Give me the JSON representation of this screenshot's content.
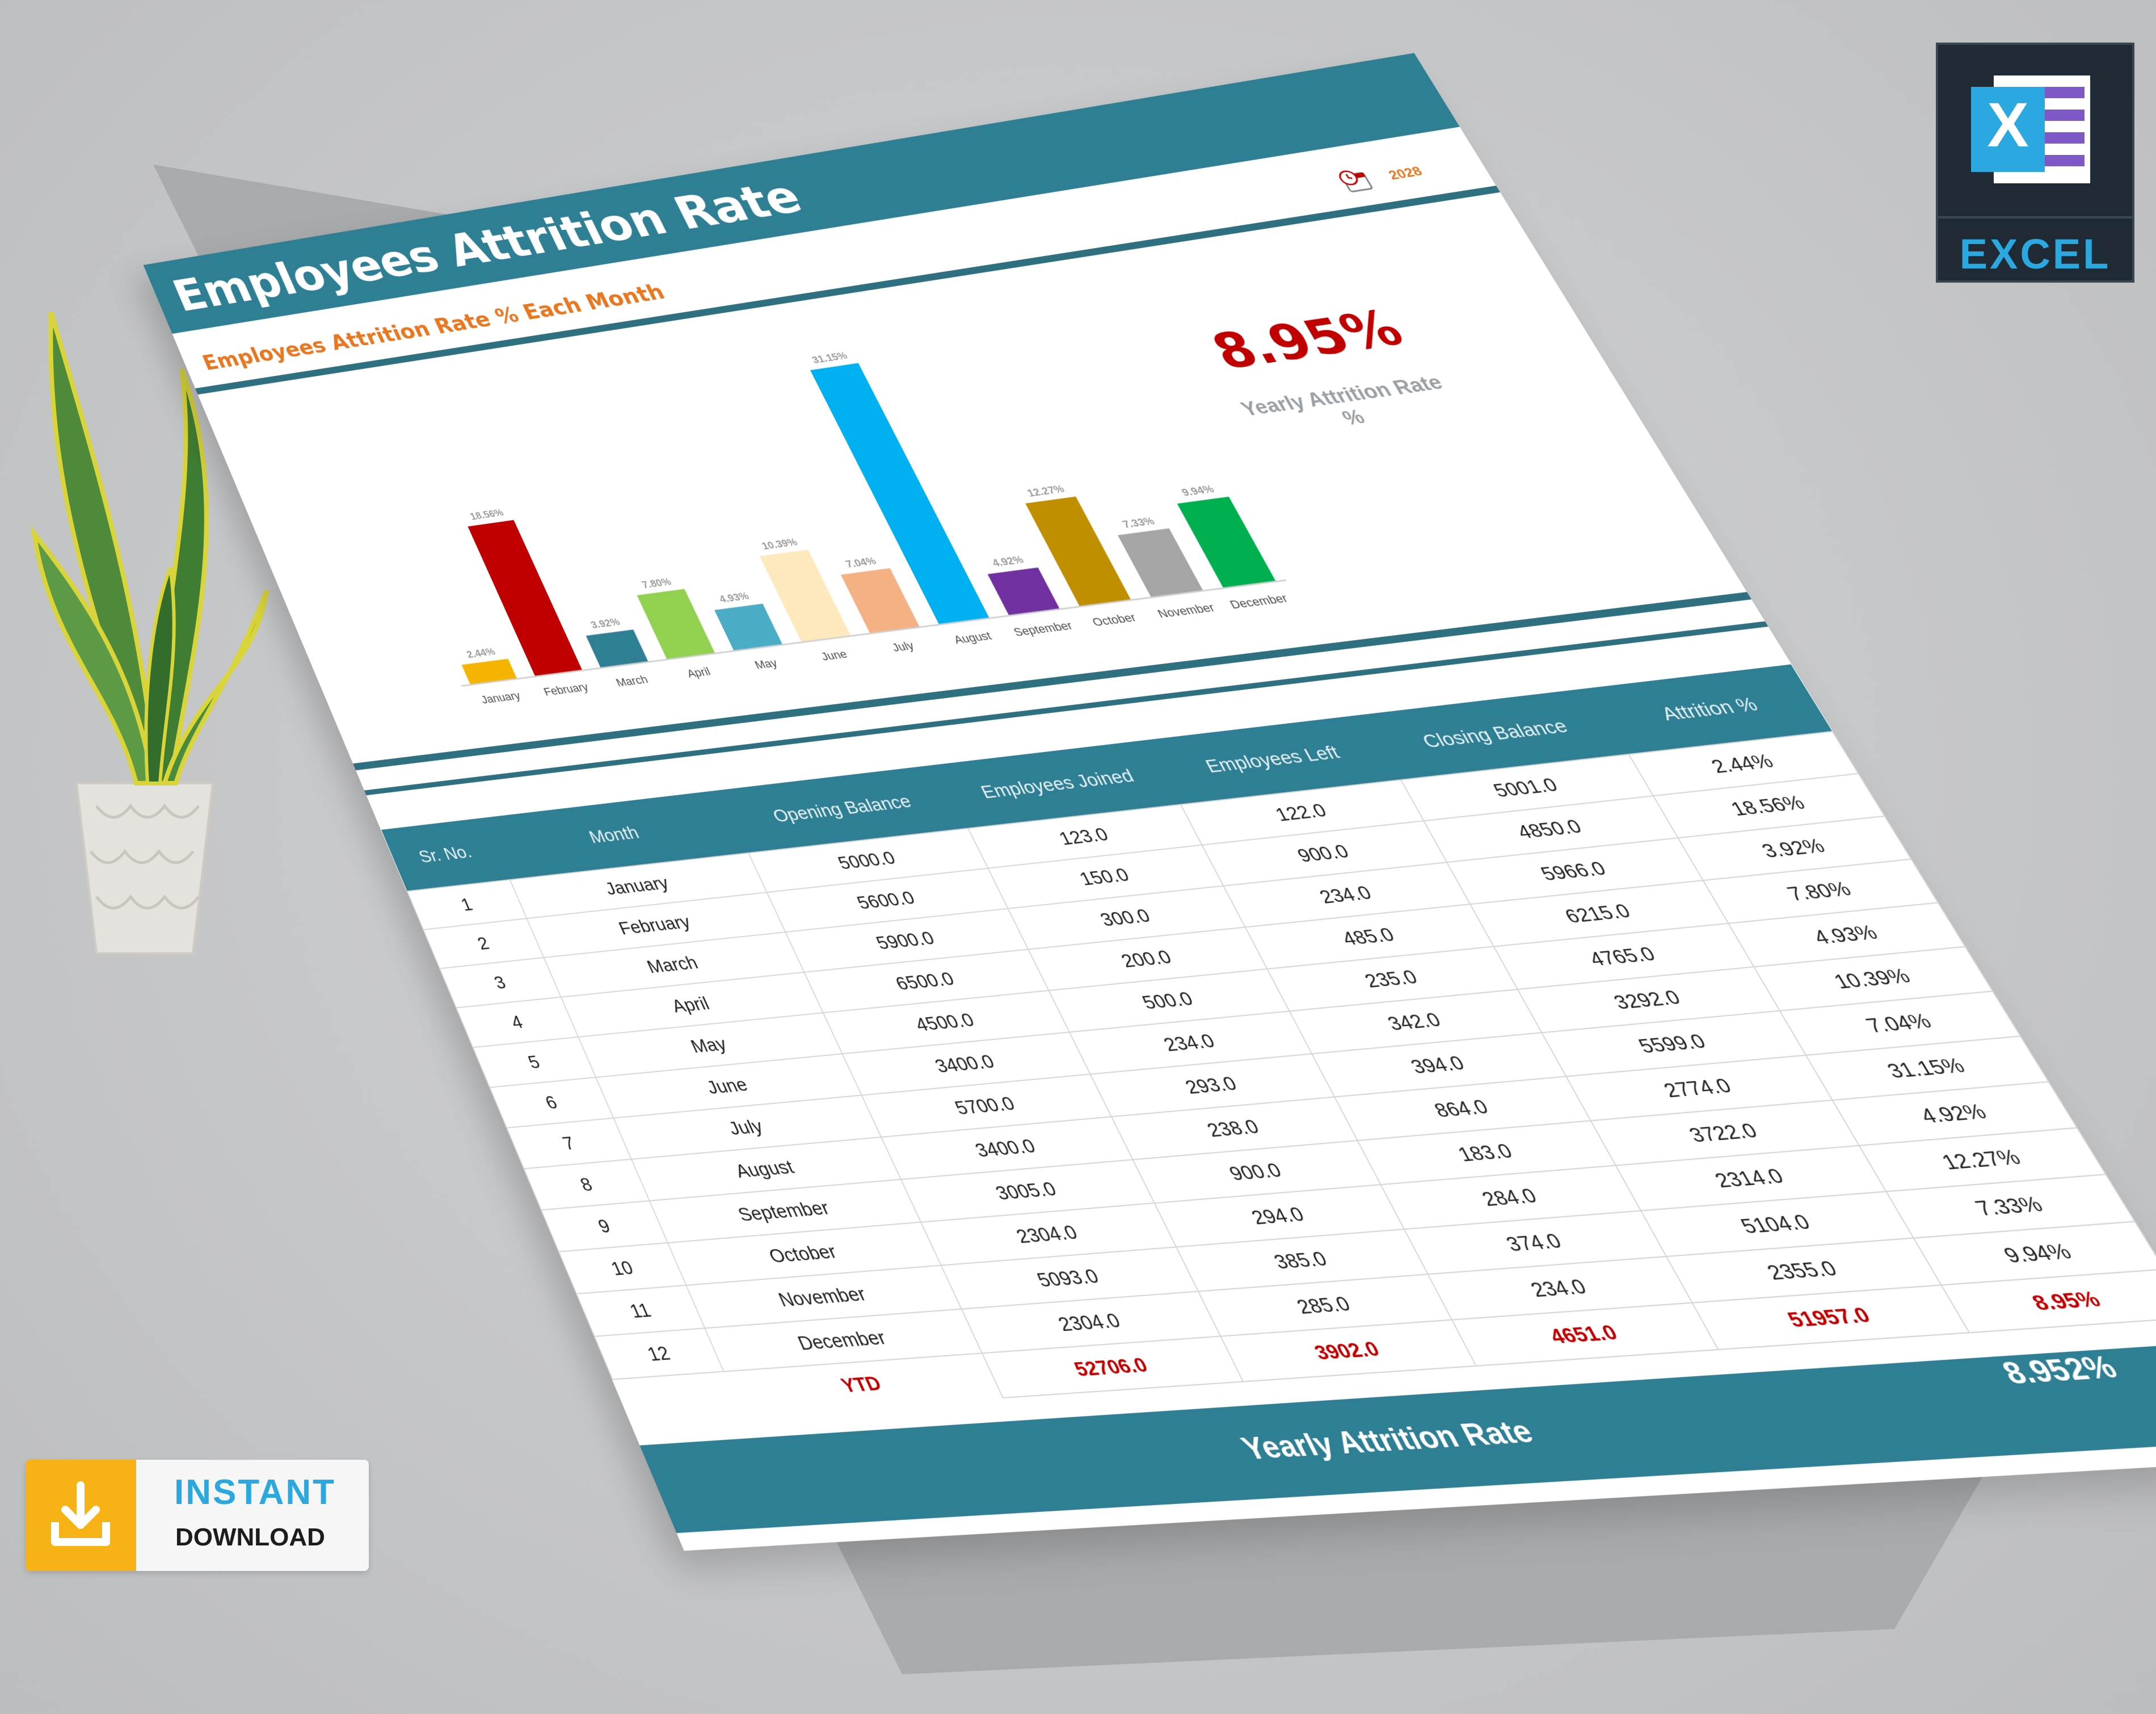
{
  "sheet": {
    "title": "Employees Attrition Rate",
    "subtitle": "Employees Attrition Rate % Each Month",
    "year": "2028"
  },
  "kpi": {
    "value": "8.95%",
    "label": "Yearly Attrition Rate %"
  },
  "chart_data": {
    "type": "bar",
    "categories": [
      "January",
      "February",
      "March",
      "April",
      "May",
      "June",
      "July",
      "August",
      "September",
      "October",
      "November",
      "December"
    ],
    "values": [
      2.44,
      18.56,
      3.92,
      7.8,
      4.93,
      10.39,
      7.04,
      31.15,
      4.92,
      12.27,
      7.33,
      9.94
    ],
    "value_labels": [
      "2.44%",
      "18.56%",
      "3.92%",
      "7.80%",
      "4.93%",
      "10.39%",
      "7.04%",
      "31.15%",
      "4.92%",
      "12.27%",
      "7.33%",
      "9.94%"
    ],
    "colors": [
      "#f5b400",
      "#c00000",
      "#2e7f93",
      "#92d050",
      "#4bacc6",
      "#fde9bd",
      "#f4b183",
      "#00b0f0",
      "#7030a0",
      "#bf8f00",
      "#a5a5a5",
      "#00b050"
    ],
    "ylim": [
      0,
      33
    ]
  },
  "table": {
    "headers": [
      "Sr. No.",
      "Month",
      "Opening Balance",
      "Employees Joined",
      "Employees Left",
      "Closing Balance",
      "Attrition %"
    ],
    "rows": [
      [
        "1",
        "January",
        "5000.0",
        "123.0",
        "122.0",
        "5001.0",
        "2.44%"
      ],
      [
        "2",
        "February",
        "5600.0",
        "150.0",
        "900.0",
        "4850.0",
        "18.56%"
      ],
      [
        "3",
        "March",
        "5900.0",
        "300.0",
        "234.0",
        "5966.0",
        "3.92%"
      ],
      [
        "4",
        "April",
        "6500.0",
        "200.0",
        "485.0",
        "6215.0",
        "7.80%"
      ],
      [
        "5",
        "May",
        "4500.0",
        "500.0",
        "235.0",
        "4765.0",
        "4.93%"
      ],
      [
        "6",
        "June",
        "3400.0",
        "234.0",
        "342.0",
        "3292.0",
        "10.39%"
      ],
      [
        "7",
        "July",
        "5700.0",
        "293.0",
        "394.0",
        "5599.0",
        "7.04%"
      ],
      [
        "8",
        "August",
        "3400.0",
        "238.0",
        "864.0",
        "2774.0",
        "31.15%"
      ],
      [
        "9",
        "September",
        "3005.0",
        "900.0",
        "183.0",
        "3722.0",
        "4.92%"
      ],
      [
        "10",
        "October",
        "2304.0",
        "294.0",
        "284.0",
        "2314.0",
        "12.27%"
      ],
      [
        "11",
        "November",
        "5093.0",
        "385.0",
        "374.0",
        "5104.0",
        "7.33%"
      ],
      [
        "12",
        "December",
        "2304.0",
        "285.0",
        "234.0",
        "2355.0",
        "9.94%"
      ]
    ],
    "ytd": {
      "label": "YTD",
      "opening": "52706.0",
      "joined": "3902.0",
      "left": "4651.0",
      "closing": "51957.0",
      "attrition": "8.95%"
    }
  },
  "footer": {
    "label": "Yearly Attrition Rate",
    "value": "8.952%"
  },
  "badges": {
    "excel": "EXCEL",
    "excel_letter": "X",
    "instant": "INSTANT",
    "download": "DOWNLOAD"
  }
}
